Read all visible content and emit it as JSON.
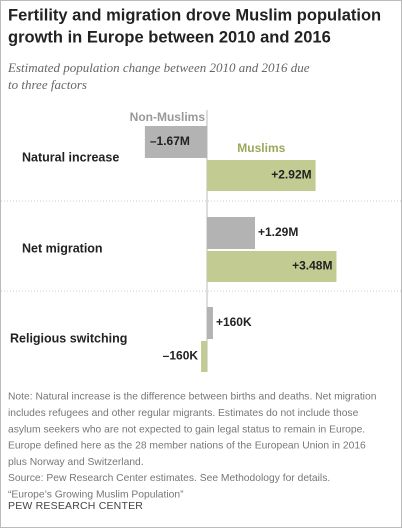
{
  "chart_data": {
    "type": "bar",
    "title": [
      "Fertility and migration drove Muslim population",
      "growth in Europe between 2010 and 2016"
    ],
    "subtitle": [
      "Estimated population change between 2010 and 2016 due",
      "to three factors"
    ],
    "categories": [
      "Natural increase",
      "Net migration",
      "Religious switching"
    ],
    "series": [
      {
        "name": "Non-Muslims",
        "color": "#b3b3b3",
        "values": [
          -1.67,
          1.29,
          0.16
        ],
        "value_labels": [
          "–1.67M",
          "+1.29M",
          "+160K"
        ]
      },
      {
        "name": "Muslims",
        "color": "#c2cc92",
        "values": [
          2.92,
          3.48,
          -0.16
        ],
        "value_labels": [
          "+2.92M",
          "+3.48M",
          "–160K"
        ]
      }
    ],
    "note": [
      "Note: Natural increase is the difference between births and deaths. Net migration",
      "includes refugees and other regular migrants. Estimates do not include those",
      "asylum seekers who are not expected to gain legal status to remain in Europe.",
      "Europe defined here as the 28 member nations of the European Union in 2016",
      "plus Norway and Switzerland.",
      "Source: Pew Research Center estimates. See Methodology for details.",
      "“Europe’s Growing Muslim Population”"
    ],
    "credit": "PEW RESEARCH CENTER"
  }
}
